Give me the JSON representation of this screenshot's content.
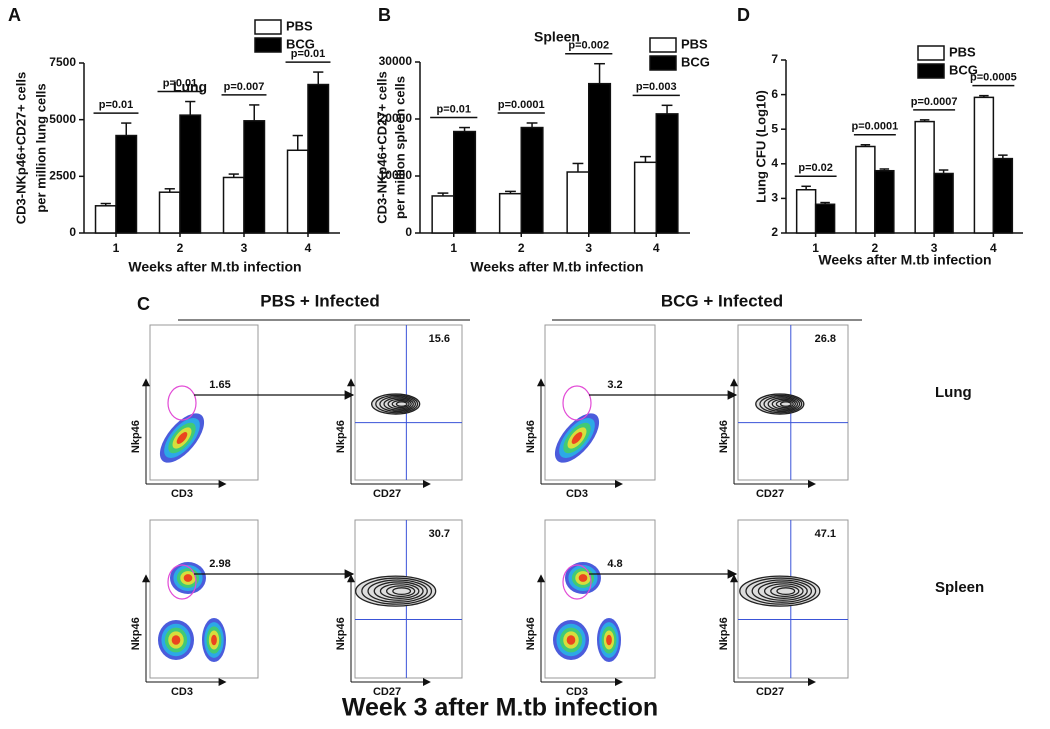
{
  "chart_data": [
    {
      "type": "bar",
      "panel_label": "A",
      "title": "Lung",
      "y_label": [
        "CD3-NKp46+CD27+ cells",
        "per million lung cells"
      ],
      "x_label": "Weeks after M.tb infection",
      "categories": [
        "1",
        "2",
        "3",
        "4"
      ],
      "series": [
        {
          "name": "PBS",
          "color": "#ffffff",
          "values": [
            1200,
            1800,
            2450,
            3650
          ],
          "errors": [
            100,
            150,
            150,
            650
          ]
        },
        {
          "name": "BCG",
          "color": "#000000",
          "values": [
            4300,
            5200,
            4950,
            6550
          ],
          "errors": [
            550,
            600,
            700,
            550
          ]
        }
      ],
      "annotations": [
        "p=0.01",
        "p=0.01",
        "p=0.007",
        "p=0.01"
      ],
      "ylim": [
        0,
        7500
      ],
      "yticks": [
        0,
        2500,
        5000,
        7500
      ],
      "legend": "top-right"
    },
    {
      "type": "bar",
      "panel_label": "B",
      "title": "Spleen",
      "y_label": [
        "CD3-NKp46+CD27+ cells",
        "per million spleen cells"
      ],
      "x_label": "Weeks after M.tb infection",
      "categories": [
        "1",
        "2",
        "3",
        "4"
      ],
      "series": [
        {
          "name": "PBS",
          "color": "#ffffff",
          "values": [
            6500,
            6900,
            10700,
            12400
          ],
          "errors": [
            500,
            400,
            1500,
            1000
          ]
        },
        {
          "name": "BCG",
          "color": "#000000",
          "values": [
            17800,
            18500,
            26200,
            20900
          ],
          "errors": [
            700,
            800,
            3500,
            1500
          ]
        }
      ],
      "annotations": [
        "p=0.01",
        "p=0.0001",
        "p=0.002",
        "p=0.003"
      ],
      "ylim": [
        0,
        30000
      ],
      "yticks": [
        0,
        10000,
        20000,
        30000
      ],
      "legend": "top-right"
    },
    {
      "type": "bar",
      "panel_label": "D",
      "y_label": [
        "Lung CFU (Log10)"
      ],
      "x_label": "Weeks after M.tb infection",
      "categories": [
        "1",
        "2",
        "3",
        "4"
      ],
      "series": [
        {
          "name": "PBS",
          "color": "#ffffff",
          "values": [
            3.25,
            4.5,
            5.22,
            5.92
          ],
          "errors": [
            0.1,
            0.05,
            0.05,
            0.05
          ]
        },
        {
          "name": "BCG",
          "color": "#000000",
          "values": [
            2.83,
            3.8,
            3.72,
            4.15
          ],
          "errors": [
            0.05,
            0.05,
            0.1,
            0.1
          ]
        }
      ],
      "annotations": [
        "p=0.02",
        "p=0.0001",
        "p=0.0007",
        "p=0.0005"
      ],
      "ylim": [
        2,
        7
      ],
      "yticks": [
        2,
        3,
        4,
        5,
        6,
        7
      ],
      "legend": "top-right"
    }
  ],
  "flow_panel": {
    "panel_label": "C",
    "title": "Week 3 after M.tb infection",
    "groups": [
      "PBS + Infected",
      "BCG + Infected"
    ],
    "tissues": [
      "Lung",
      "Spleen"
    ],
    "gates": [
      [
        1.65,
        15.6,
        3.2,
        26.8
      ],
      [
        2.98,
        30.7,
        4.8,
        47.1
      ]
    ],
    "axis_labels": {
      "y": "Nkp46",
      "x_gate": "CD3",
      "x_quadrant": "CD27"
    }
  }
}
